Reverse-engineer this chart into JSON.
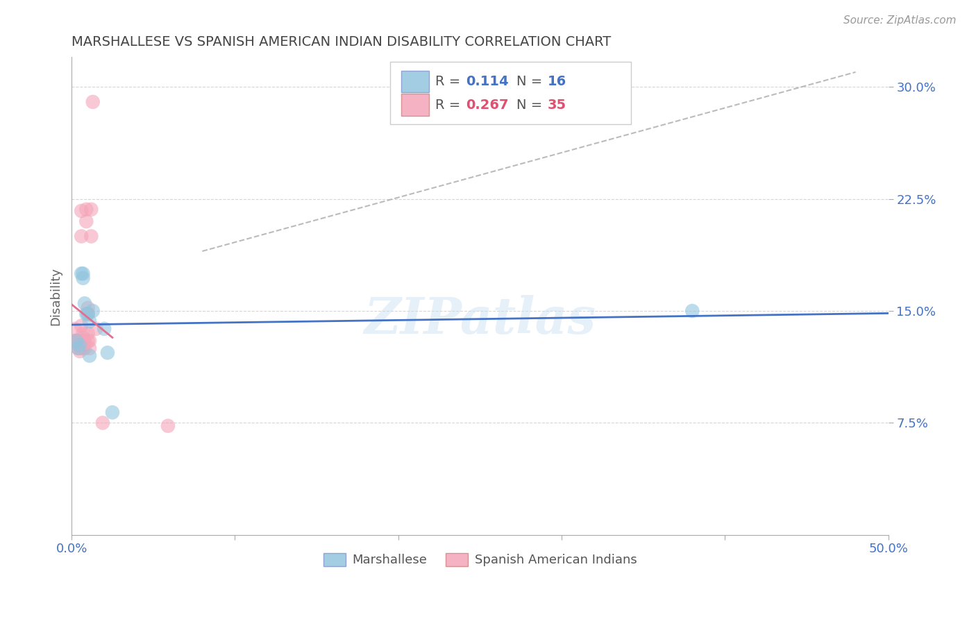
{
  "title": "MARSHALLESE VS SPANISH AMERICAN INDIAN DISABILITY CORRELATION CHART",
  "source": "Source: ZipAtlas.com",
  "ylabel": "Disability",
  "xlim": [
    0.0,
    0.5
  ],
  "ylim": [
    0.0,
    0.32
  ],
  "yticks": [
    0.075,
    0.15,
    0.225,
    0.3
  ],
  "ytick_labels": [
    "7.5%",
    "15.0%",
    "22.5%",
    "30.0%"
  ],
  "xticks": [
    0.0,
    0.1,
    0.2,
    0.3,
    0.4,
    0.5
  ],
  "xtick_labels": [
    "0.0%",
    "",
    "",
    "",
    "",
    "50.0%"
  ],
  "legend_R_blue": "0.114",
  "legend_N_blue": "16",
  "legend_R_pink": "0.267",
  "legend_N_pink": "35",
  "blue_color": "#92c5de",
  "pink_color": "#f4a5b8",
  "blue_line_color": "#4472c4",
  "pink_line_color": "#e07090",
  "title_color": "#444444",
  "axis_label_color": "#666666",
  "tick_color": "#4472c4",
  "grid_color": "#cccccc",
  "watermark": "ZIPatlas",
  "marshallese_x": [
    0.003,
    0.004,
    0.005,
    0.006,
    0.007,
    0.007,
    0.008,
    0.009,
    0.01,
    0.011,
    0.011,
    0.013,
    0.02,
    0.022,
    0.025,
    0.38
  ],
  "marshallese_y": [
    0.13,
    0.125,
    0.127,
    0.175,
    0.175,
    0.172,
    0.155,
    0.148,
    0.148,
    0.143,
    0.12,
    0.15,
    0.138,
    0.122,
    0.082,
    0.15
  ],
  "spanish_ai_x": [
    0.001,
    0.002,
    0.003,
    0.003,
    0.003,
    0.004,
    0.004,
    0.005,
    0.005,
    0.005,
    0.005,
    0.006,
    0.006,
    0.006,
    0.007,
    0.007,
    0.007,
    0.007,
    0.007,
    0.008,
    0.008,
    0.009,
    0.009,
    0.01,
    0.01,
    0.01,
    0.01,
    0.011,
    0.011,
    0.012,
    0.012,
    0.013,
    0.015,
    0.019,
    0.059
  ],
  "spanish_ai_y": [
    0.13,
    0.138,
    0.13,
    0.13,
    0.128,
    0.13,
    0.125,
    0.13,
    0.127,
    0.125,
    0.123,
    0.217,
    0.2,
    0.14,
    0.135,
    0.132,
    0.13,
    0.128,
    0.125,
    0.13,
    0.125,
    0.218,
    0.21,
    0.152,
    0.148,
    0.135,
    0.13,
    0.13,
    0.125,
    0.218,
    0.2,
    0.29,
    0.138,
    0.075,
    0.073
  ]
}
